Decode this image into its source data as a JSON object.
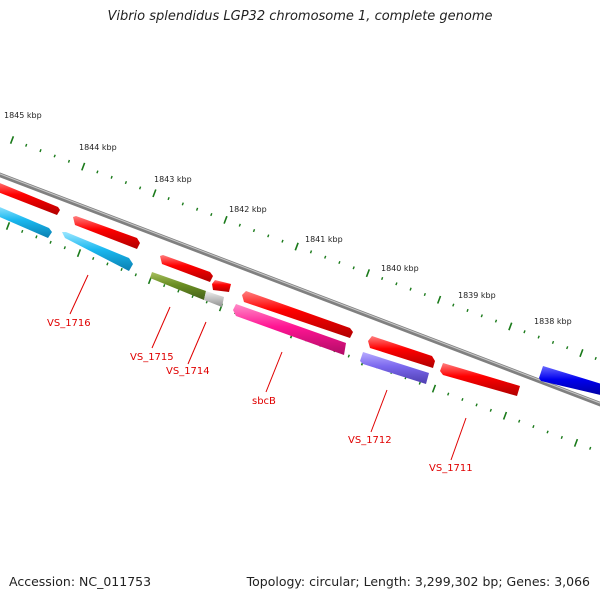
{
  "title": "Vibrio splendidus LGP32 chromosome 1, complete genome",
  "footer": {
    "accession": "Accession: NC_011753",
    "summary": "Topology: circular; Length: 3,299,302 bp; Genes: 3,066"
  },
  "ruler_labels": [
    "1845 kbp",
    "1844 kbp",
    "1843 kbp",
    "1842 kbp",
    "1841 kbp",
    "1840 kbp",
    "1839 kbp",
    "1838 kbp"
  ],
  "gene_labels": [
    "VS_1716",
    "VS_1715",
    "VS_1714",
    "sbcB",
    "VS_1712",
    "VS_1711"
  ],
  "colors": {
    "forward_red": "#ff0000",
    "cyan": "#1ab8f0",
    "olive": "#6b8e23",
    "grey": "#c0c0c0",
    "magenta": "#ff1493",
    "purple": "#7b68ee",
    "blue": "#0000ee",
    "backbone": "#808080",
    "tick_green": "#1a7a1a",
    "label_red": "#e00000"
  }
}
